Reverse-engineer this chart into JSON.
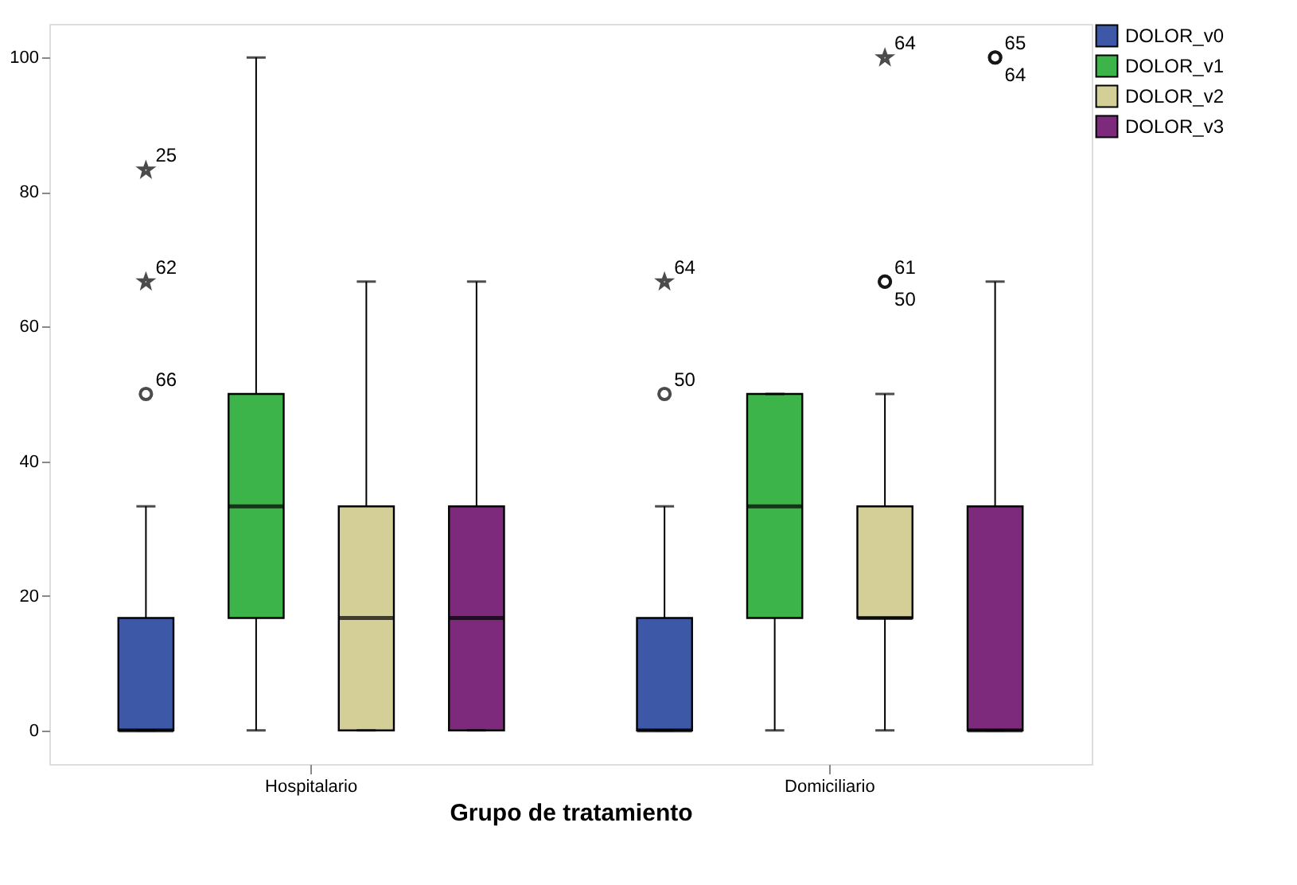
{
  "chart_data": {
    "type": "box",
    "xlabel": "Grupo de tratamiento",
    "categories": [
      "Hospitalario",
      "Domiciliario"
    ],
    "series": [
      {
        "name": "DOLOR_v0",
        "color": "#3e58a8",
        "boxes": [
          {
            "low": 0,
            "q1": 0,
            "median": 0,
            "q3": 16.7,
            "high": 33.3,
            "outliers": [
              50,
              66.7,
              83.3
            ]
          },
          {
            "low": 0,
            "q1": 0,
            "median": 0,
            "q3": 16.7,
            "high": 33.3,
            "outliers": [
              50,
              66.7
            ]
          }
        ]
      },
      {
        "name": "DOLOR_v1",
        "color": "#3cb44a",
        "boxes": [
          {
            "low": 0,
            "q1": 16.7,
            "median": 33.3,
            "q3": 50,
            "high": 100
          },
          {
            "low": 0,
            "q1": 16.7,
            "median": 33.3,
            "q3": 50,
            "high": 50
          }
        ]
      },
      {
        "name": "DOLOR_v2",
        "color": "#d4cf96",
        "boxes": [
          {
            "low": 0,
            "q1": 0,
            "median": 16.7,
            "q3": 33.3,
            "high": 66.7
          },
          {
            "low": 0,
            "q1": 16.7,
            "median": 16.7,
            "q3": 33.3,
            "high": 50,
            "outliers": [
              66.7,
              66.7,
              100
            ]
          }
        ]
      },
      {
        "name": "DOLOR_v3",
        "color": "#7d2a7c",
        "boxes": [
          {
            "low": 0,
            "q1": 0,
            "median": 16.7,
            "q3": 33.3,
            "high": 66.7
          },
          {
            "low": 0,
            "q1": 0,
            "median": 0,
            "q3": 33.3,
            "high": 66.7,
            "outliers": [
              100,
              100
            ]
          }
        ]
      }
    ],
    "annotations": [
      "66",
      "62",
      "25",
      "50",
      "64",
      "61",
      "50",
      "64",
      "65",
      "64"
    ],
    "ylim": [
      -5,
      105
    ],
    "yticks": [
      0,
      20,
      40,
      60,
      80,
      100
    ],
    "grid": false,
    "legend": "top right"
  }
}
